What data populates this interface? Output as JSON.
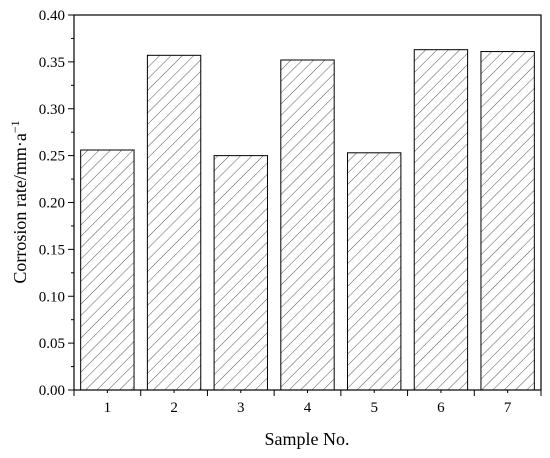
{
  "chart_data": {
    "type": "bar",
    "categories": [
      "1",
      "2",
      "3",
      "4",
      "5",
      "6",
      "7"
    ],
    "values": [
      0.256,
      0.357,
      0.25,
      0.352,
      0.253,
      0.363,
      0.361
    ],
    "xlabel": "Sample No.",
    "ylabel": {
      "main": "Corrosion rate/mm·a",
      "superscript": "−1"
    },
    "ylim": [
      0,
      0.4
    ],
    "yticks": [
      "0.00",
      "0.05",
      "0.10",
      "0.15",
      "0.20",
      "0.25",
      "0.30",
      "0.35",
      "0.40"
    ],
    "bar_fill": "hatched-diagonal",
    "grid": false,
    "legend": "none"
  },
  "colors": {
    "bar_stroke": "#000000",
    "hatch": "#555555",
    "background": "#ffffff"
  }
}
